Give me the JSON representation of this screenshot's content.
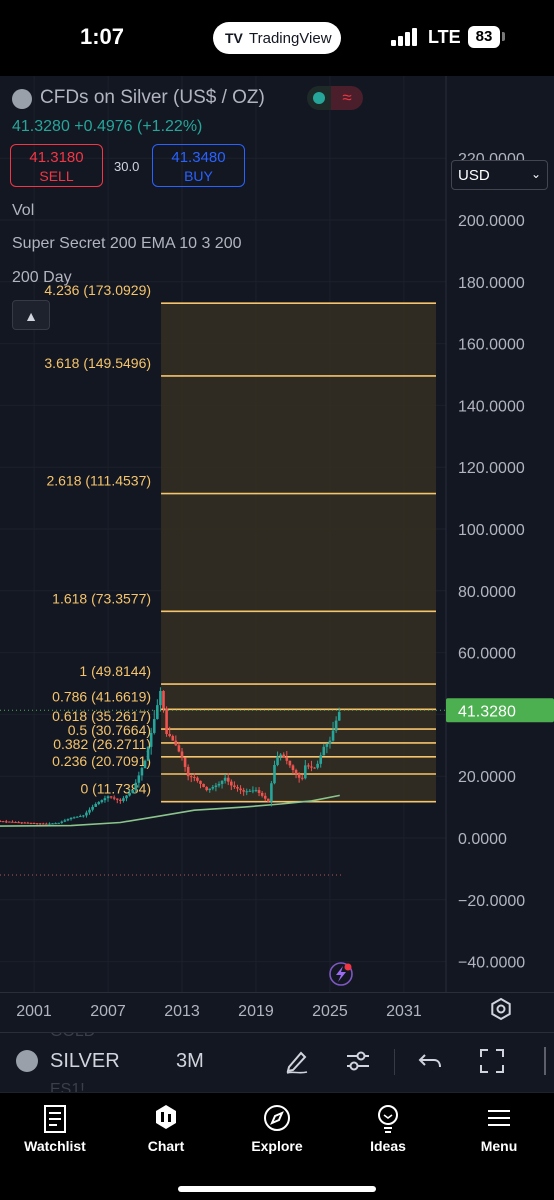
{
  "status_bar": {
    "time": "1:07",
    "app_pill": "TradingView",
    "network": "LTE",
    "battery": "83"
  },
  "header": {
    "title": "CFDs on Silver (US$ / OZ)",
    "price_line": "41.3280 +0.4976 (+1.22%)",
    "sell_price": "41.3180",
    "sell_label": "SELL",
    "spread": "30.0",
    "buy_price": "41.3480",
    "buy_label": "BUY",
    "indicators": [
      "Vol",
      "Super Secret 200 EMA 10 3 200",
      "200 Day"
    ],
    "collapse_icon": "chevron-up-icon"
  },
  "currency": {
    "selected": "USD"
  },
  "chart_data": {
    "type": "candlestick",
    "symbol": "SILVER",
    "interval": "3M",
    "currency": "USD",
    "last_price": 41.328,
    "price_axis": {
      "ticks": [
        "220.0000",
        "200.0000",
        "180.0000",
        "160.0000",
        "140.0000",
        "120.0000",
        "100.0000",
        "80.0000",
        "60.0000",
        "40.0000",
        "20.0000",
        "0.0000",
        "−20.0000",
        "−40.0000"
      ]
    },
    "time_axis": {
      "ticks": [
        "2001",
        "2007",
        "2013",
        "2019",
        "2025",
        "2031"
      ]
    },
    "price_label": "41.3280",
    "fibonacci": {
      "from_year": 2011.3,
      "to_year": 2035.3,
      "levels": [
        {
          "label": "4.236 (173.0929)",
          "price": 173.0929
        },
        {
          "label": "3.618 (149.5496)",
          "price": 149.5496
        },
        {
          "label": "2.618 (111.4537)",
          "price": 111.4537
        },
        {
          "label": "1.618 (73.3577)",
          "price": 73.3577
        },
        {
          "label": "1 (49.8144)",
          "price": 49.8144
        },
        {
          "label": "0.786 (41.6619)",
          "price": 41.6619
        },
        {
          "label": "0.618 (35.2617)",
          "price": 35.2617
        },
        {
          "label": "0.5 (30.7664)",
          "price": 30.7664
        },
        {
          "label": "0.382 (26.2711)",
          "price": 26.2711
        },
        {
          "label": "0.236 (20.7091)",
          "price": 20.7091
        },
        {
          "label": "0 (11.7384)",
          "price": 11.7384
        }
      ]
    },
    "price_series_approx": [
      [
        1996,
        5.1
      ],
      [
        1998,
        5.5
      ],
      [
        2000,
        5.0
      ],
      [
        2002,
        4.6
      ],
      [
        2003,
        4.9
      ],
      [
        2004,
        6.5
      ],
      [
        2005,
        7.3
      ],
      [
        2006,
        11.0
      ],
      [
        2007,
        13.5
      ],
      [
        2008,
        12.0
      ],
      [
        2009,
        15.5
      ],
      [
        2010,
        25.0
      ],
      [
        2011,
        43.0
      ],
      [
        2011.3,
        48.5
      ],
      [
        2011.8,
        32.0
      ],
      [
        2012,
        33.0
      ],
      [
        2012.5,
        30.0
      ],
      [
        2013,
        26.0
      ],
      [
        2013.5,
        20.0
      ],
      [
        2014,
        19.5
      ],
      [
        2015,
        15.5
      ],
      [
        2016,
        17.5
      ],
      [
        2016.5,
        19.5
      ],
      [
        2017,
        17.0
      ],
      [
        2018,
        15.0
      ],
      [
        2019,
        15.5
      ],
      [
        2020,
        11.8
      ],
      [
        2020.6,
        26.0
      ],
      [
        2021,
        27.0
      ],
      [
        2021.5,
        25.0
      ],
      [
        2022,
        22.0
      ],
      [
        2022.7,
        18.5
      ],
      [
        2023,
        23.5
      ],
      [
        2023.7,
        22.5
      ],
      [
        2024,
        24.0
      ],
      [
        2024.5,
        29.5
      ],
      [
        2025,
        31.5
      ],
      [
        2025.5,
        38.0
      ],
      [
        2025.8,
        41.3
      ]
    ],
    "ema_200_approx": [
      [
        1996,
        3.8
      ],
      [
        2004,
        4.0
      ],
      [
        2008,
        5.0
      ],
      [
        2011,
        7.0
      ],
      [
        2014,
        9.0
      ],
      [
        2018,
        10.0
      ],
      [
        2021,
        11.0
      ],
      [
        2023.5,
        12.0
      ],
      [
        2025.8,
        13.8
      ]
    ],
    "colors": {
      "fib": "#f5c46b",
      "fib_fill": "#332d22",
      "ema": "#8bc58b",
      "up": "#26a69a",
      "down": "#ef5350",
      "price_label_bg": "#4caf50"
    }
  },
  "toolbar": {
    "symbol": "SILVER",
    "interval": "3M",
    "ghost_above": "GOLD",
    "ghost_below": "ES1!",
    "icons": [
      "draw-pen-icon",
      "indicators-icon",
      "undo-icon",
      "fullscreen-icon"
    ]
  },
  "tabbar": {
    "tabs": [
      {
        "label": "Watchlist",
        "icon": "watchlist-icon"
      },
      {
        "label": "Chart",
        "icon": "chart-icon"
      },
      {
        "label": "Explore",
        "icon": "compass-icon"
      },
      {
        "label": "Ideas",
        "icon": "lightbulb-icon"
      },
      {
        "label": "Menu",
        "icon": "menu-icon"
      }
    ]
  }
}
